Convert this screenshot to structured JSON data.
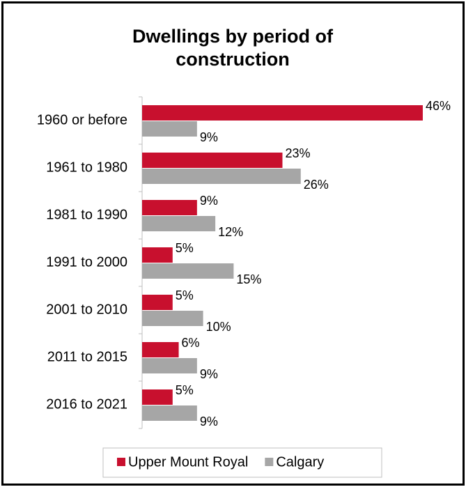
{
  "chart_data": {
    "type": "bar",
    "orientation": "horizontal",
    "title": "Dwellings by period of construction",
    "categories": [
      "1960 or before",
      "1961 to 1980",
      "1981 to 1990",
      "1991 to 2000",
      "2001 to 2010",
      "2011 to 2015",
      "2016 to 2021"
    ],
    "series": [
      {
        "name": "Upper Mount Royal",
        "color": "#c8102e",
        "values": [
          46,
          23,
          9,
          5,
          5,
          6,
          5
        ],
        "value_labels": [
          "46%",
          "23%",
          "9%",
          "5%",
          "5%",
          "6%",
          "5%"
        ]
      },
      {
        "name": "Calgary",
        "color": "#a6a6a6",
        "values": [
          9,
          26,
          12,
          15,
          10,
          9,
          9
        ],
        "value_labels": [
          "9%",
          "26%",
          "12%",
          "15%",
          "10%",
          "9%",
          "9%"
        ]
      }
    ],
    "legend": "bottom"
  }
}
